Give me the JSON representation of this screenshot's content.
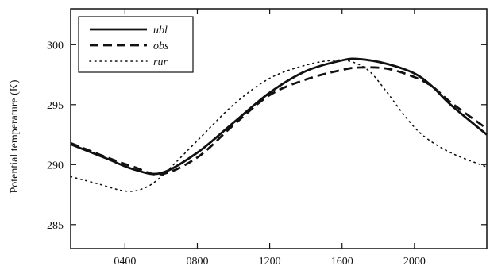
{
  "chart_data": {
    "type": "line",
    "title": "",
    "xlabel": "",
    "ylabel": "Potential temperature (K)",
    "xlim": [
      100,
      2400
    ],
    "ylim": [
      283,
      303
    ],
    "xticks": [
      400,
      800,
      1200,
      1600,
      2000
    ],
    "xtick_labels": [
      "0400",
      "0800",
      "1200",
      "1600",
      "2000"
    ],
    "yticks": [
      285,
      290,
      295,
      300
    ],
    "ytick_labels": [
      "285",
      "290",
      "295",
      "300"
    ],
    "grid": false,
    "legend_position": "top-left",
    "series": [
      {
        "name": "ubl",
        "style": "solid",
        "color": "#111111",
        "x": [
          100,
          300,
          450,
          600,
          800,
          1000,
          1200,
          1400,
          1600,
          1700,
          1850,
          2000,
          2100,
          2200,
          2400
        ],
        "y": [
          291.7,
          290.5,
          289.6,
          289.3,
          291.0,
          293.5,
          296.0,
          297.8,
          298.7,
          298.8,
          298.4,
          297.6,
          296.5,
          295.0,
          292.5
        ]
      },
      {
        "name": "obs",
        "style": "dashed",
        "color": "#111111",
        "x": [
          100,
          300,
          450,
          600,
          800,
          1000,
          1200,
          1400,
          1600,
          1700,
          1850,
          2000,
          2100,
          2200,
          2400
        ],
        "y": [
          291.8,
          290.6,
          289.8,
          289.2,
          290.6,
          293.3,
          295.8,
          297.1,
          297.9,
          298.1,
          298.0,
          297.3,
          296.5,
          295.2,
          293.0
        ]
      },
      {
        "name": "rur",
        "style": "dotted",
        "color": "#111111",
        "x": [
          100,
          250,
          400,
          500,
          600,
          800,
          1000,
          1200,
          1400,
          1550,
          1650,
          1750,
          1850,
          1950,
          2050,
          2200,
          2400
        ],
        "y": [
          289.0,
          288.4,
          287.8,
          288.0,
          289.0,
          292.0,
          295.0,
          297.2,
          298.3,
          298.7,
          298.6,
          297.8,
          296.0,
          294.0,
          292.4,
          291.0,
          289.8
        ]
      }
    ]
  }
}
